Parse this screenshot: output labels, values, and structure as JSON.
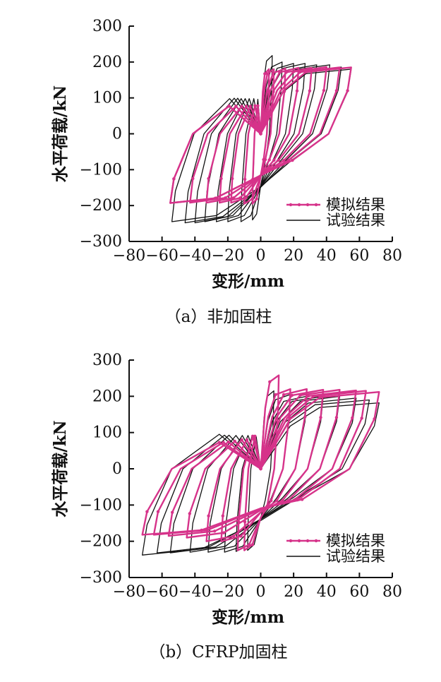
{
  "chart_data": [
    {
      "panel": "a",
      "type": "line",
      "caption": "（a）非加固柱",
      "xlabel": "变形/mm",
      "ylabel": "水平荷载/kN",
      "xlim": [
        -80,
        80
      ],
      "ylim": [
        -300,
        300
      ],
      "xticks": [
        -80,
        -60,
        -40,
        -20,
        0,
        20,
        40,
        60,
        80
      ],
      "yticks": [
        -300,
        -200,
        -100,
        0,
        100,
        200,
        300
      ],
      "xtick_labels": [
        "−80",
        "−60",
        "−40",
        "−20",
        "0",
        "20",
        "40",
        "60",
        "80"
      ],
      "ytick_labels": [
        "−300",
        "−200",
        "−100",
        "0",
        "100",
        "200",
        "300"
      ],
      "grid": false,
      "legend_position": "bottom-right",
      "series": [
        {
          "name": "模拟结果",
          "color": "#d6338a",
          "cycles": [
            {
              "dmax": 5,
              "fmax": 180,
              "dmin": -5,
              "fmin": -195
            },
            {
              "dmax": 8,
              "fmax": 180,
              "dmin": -10,
              "fmin": -195
            },
            {
              "dmax": 15,
              "fmax": 182,
              "dmin": -18,
              "fmin": -192
            },
            {
              "dmax": 23,
              "fmax": 184,
              "dmin": -25,
              "fmin": -192
            },
            {
              "dmax": 31,
              "fmax": 184,
              "dmin": -33,
              "fmin": -192
            },
            {
              "dmax": 40,
              "fmax": 186,
              "dmin": -43,
              "fmin": -192
            },
            {
              "dmax": 48,
              "fmax": 185,
              "dmin": -55,
              "fmin": -193
            },
            {
              "dmax": 55,
              "fmax": 185,
              "dmin": -55,
              "fmin": -193
            }
          ]
        },
        {
          "name": "试验结果",
          "color": "#111111",
          "cycles": [
            {
              "dmax": 7,
              "fmax": 218,
              "dmin": -5,
              "fmin": -240
            },
            {
              "dmax": 13,
              "fmax": 200,
              "dmin": -12,
              "fmin": -245
            },
            {
              "dmax": 20,
              "fmax": 196,
              "dmin": -20,
              "fmin": -245
            },
            {
              "dmax": 27,
              "fmax": 196,
              "dmin": -27,
              "fmin": -245
            },
            {
              "dmax": 34,
              "fmax": 192,
              "dmin": -34,
              "fmin": -245
            },
            {
              "dmax": 42,
              "fmax": 192,
              "dmin": -40,
              "fmin": -248
            },
            {
              "dmax": 49,
              "fmax": 186,
              "dmin": -46,
              "fmin": -248
            },
            {
              "dmax": 55,
              "fmax": 180,
              "dmin": -54,
              "fmin": -245
            }
          ]
        }
      ]
    },
    {
      "panel": "b",
      "type": "line",
      "caption": "（b）CFRP加固柱",
      "xlabel": "变形/mm",
      "ylabel": "水平荷载/kN",
      "xlim": [
        -80,
        80
      ],
      "ylim": [
        -300,
        300
      ],
      "xticks": [
        -80,
        -60,
        -40,
        -20,
        0,
        20,
        40,
        60,
        80
      ],
      "yticks": [
        -300,
        -200,
        -100,
        0,
        100,
        200,
        300
      ],
      "xtick_labels": [
        "−80",
        "−60",
        "−40",
        "−20",
        "0",
        "20",
        "40",
        "60",
        "80"
      ],
      "ytick_labels": [
        "−300",
        "−200",
        "−100",
        "0",
        "100",
        "200",
        "300"
      ],
      "grid": false,
      "legend_position": "bottom-right",
      "series": [
        {
          "name": "模拟结果",
          "color": "#d6338a",
          "cycles": [
            {
              "dmax": 11,
              "fmax": 258,
              "dmin": -10,
              "fmin": -225
            },
            {
              "dmax": 18,
              "fmax": 220,
              "dmin": -14,
              "fmin": -225
            },
            {
              "dmax": 28,
              "fmax": 220,
              "dmin": -24,
              "fmin": -200
            },
            {
              "dmax": 38,
              "fmax": 218,
              "dmin": -33,
              "fmin": -200
            },
            {
              "dmax": 48,
              "fmax": 218,
              "dmin": -45,
              "fmin": -190
            },
            {
              "dmax": 58,
              "fmax": 216,
              "dmin": -56,
              "fmin": -185
            },
            {
              "dmax": 64,
              "fmax": 215,
              "dmin": -65,
              "fmin": -182
            },
            {
              "dmax": 72,
              "fmax": 212,
              "dmin": -72,
              "fmin": -182
            }
          ]
        },
        {
          "name": "试验结果",
          "color": "#111111",
          "cycles": [
            {
              "dmax": 8,
              "fmax": 215,
              "dmin": -8,
              "fmin": -225
            },
            {
              "dmax": 18,
              "fmax": 205,
              "dmin": -15,
              "fmin": -228
            },
            {
              "dmax": 28,
              "fmax": 200,
              "dmin": -22,
              "fmin": -230
            },
            {
              "dmax": 38,
              "fmax": 200,
              "dmin": -32,
              "fmin": -230
            },
            {
              "dmax": 48,
              "fmax": 200,
              "dmin": -43,
              "fmin": -230
            },
            {
              "dmax": 58,
              "fmax": 195,
              "dmin": -55,
              "fmin": -232
            },
            {
              "dmax": 66,
              "fmax": 190,
              "dmin": -63,
              "fmin": -232
            },
            {
              "dmax": 72,
              "fmax": 182,
              "dmin": -72,
              "fmin": -238
            }
          ]
        }
      ]
    }
  ]
}
